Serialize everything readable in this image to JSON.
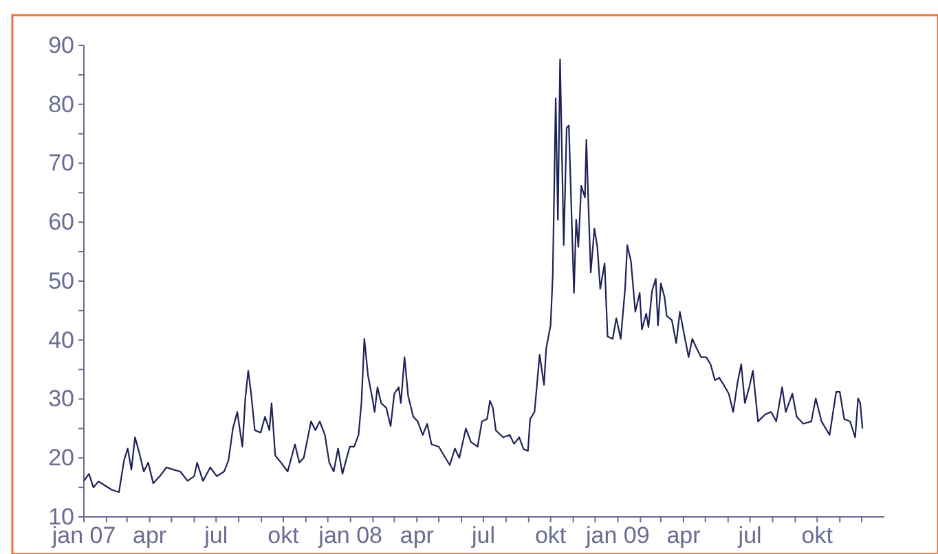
{
  "chart_data": {
    "type": "line",
    "xlim": [
      "2007-01-01",
      "2010-01-01"
    ],
    "xticks": [
      {
        "value": "2007-01-01",
        "label": "jan 07"
      },
      {
        "value": "2007-02-01",
        "label": null
      },
      {
        "value": "2007-03-01",
        "label": null
      },
      {
        "value": "2007-04-01",
        "label": "apr"
      },
      {
        "value": "2007-05-01",
        "label": null
      },
      {
        "value": "2007-06-01",
        "label": null
      },
      {
        "value": "2007-07-01",
        "label": "jul"
      },
      {
        "value": "2007-08-01",
        "label": null
      },
      {
        "value": "2007-09-01",
        "label": null
      },
      {
        "value": "2007-10-01",
        "label": "okt"
      },
      {
        "value": "2007-11-01",
        "label": null
      },
      {
        "value": "2007-12-01",
        "label": null
      },
      {
        "value": "2008-01-01",
        "label": "jan 08"
      },
      {
        "value": "2008-02-01",
        "label": null
      },
      {
        "value": "2008-03-01",
        "label": null
      },
      {
        "value": "2008-04-01",
        "label": "apr"
      },
      {
        "value": "2008-05-01",
        "label": null
      },
      {
        "value": "2008-06-01",
        "label": null
      },
      {
        "value": "2008-07-01",
        "label": "jul"
      },
      {
        "value": "2008-08-01",
        "label": null
      },
      {
        "value": "2008-09-01",
        "label": null
      },
      {
        "value": "2008-10-01",
        "label": "okt"
      },
      {
        "value": "2008-11-01",
        "label": null
      },
      {
        "value": "2008-12-01",
        "label": null
      },
      {
        "value": "2009-01-01",
        "label": "jan 09"
      },
      {
        "value": "2009-02-01",
        "label": null
      },
      {
        "value": "2009-03-01",
        "label": null
      },
      {
        "value": "2009-04-01",
        "label": "apr"
      },
      {
        "value": "2009-05-01",
        "label": null
      },
      {
        "value": "2009-06-01",
        "label": null
      },
      {
        "value": "2009-07-01",
        "label": "jul"
      },
      {
        "value": "2009-08-01",
        "label": null
      },
      {
        "value": "2009-09-01",
        "label": null
      },
      {
        "value": "2009-10-01",
        "label": "okt"
      },
      {
        "value": "2009-11-01",
        "label": null
      },
      {
        "value": "2009-12-01",
        "label": null
      }
    ],
    "ylim": [
      10,
      90
    ],
    "yticks": [
      10,
      {
        "value": 15,
        "label": null
      },
      20,
      {
        "value": 25,
        "label": null
      },
      30,
      {
        "value": 35,
        "label": null
      },
      40,
      {
        "value": 45,
        "label": null
      },
      50,
      {
        "value": 55,
        "label": null
      },
      60,
      {
        "value": 65,
        "label": null
      },
      70,
      {
        "value": 75,
        "label": null
      },
      80,
      {
        "value": 85,
        "label": null
      },
      90
    ],
    "grid": false,
    "marker": "none",
    "line_style": "solid",
    "series": [
      {
        "color": "#1f2257",
        "x": [
          "2007-01-01",
          "2007-01-08",
          "2007-01-14",
          "2007-01-21",
          "2007-01-30",
          "2007-02-08",
          "2007-02-18",
          "2007-02-25",
          "2007-03-02",
          "2007-03-07",
          "2007-03-12",
          "2007-03-18",
          "2007-03-24",
          "2007-03-30",
          "2007-04-06",
          "2007-04-15",
          "2007-04-24",
          "2007-05-04",
          "2007-05-13",
          "2007-05-23",
          "2007-06-01",
          "2007-06-05",
          "2007-06-13",
          "2007-06-23",
          "2007-07-02",
          "2007-07-12",
          "2007-07-18",
          "2007-07-24",
          "2007-07-30",
          "2007-08-06",
          "2007-08-10",
          "2007-08-14",
          "2007-08-18",
          "2007-08-23",
          "2007-08-31",
          "2007-09-06",
          "2007-09-12",
          "2007-09-15",
          "2007-09-20",
          "2007-09-28",
          "2007-10-07",
          "2007-10-17",
          "2007-10-23",
          "2007-10-29",
          "2007-11-08",
          "2007-11-14",
          "2007-11-20",
          "2007-11-27",
          "2007-12-03",
          "2007-12-09",
          "2007-12-15",
          "2007-12-21",
          "2007-12-31",
          "2008-01-06",
          "2008-01-12",
          "2008-01-16",
          "2008-01-20",
          "2008-01-25",
          "2008-01-31",
          "2008-02-03",
          "2008-02-07",
          "2008-02-12",
          "2008-02-19",
          "2008-02-25",
          "2008-03-01",
          "2008-03-07",
          "2008-03-10",
          "2008-03-15",
          "2008-03-20",
          "2008-03-27",
          "2008-04-02",
          "2008-04-09",
          "2008-04-15",
          "2008-04-21",
          "2008-05-01",
          "2008-05-10",
          "2008-05-16",
          "2008-05-23",
          "2008-05-29",
          "2008-06-07",
          "2008-06-14",
          "2008-06-23",
          "2008-06-29",
          "2008-07-06",
          "2008-07-10",
          "2008-07-14",
          "2008-07-18",
          "2008-07-28",
          "2008-08-06",
          "2008-08-12",
          "2008-08-19",
          "2008-08-25",
          "2008-08-31",
          "2008-09-03",
          "2008-09-09",
          "2008-09-16",
          "2008-09-22",
          "2008-09-25",
          "2008-10-01",
          "2008-10-04",
          "2008-10-08",
          "2008-10-11",
          "2008-10-14",
          "2008-10-19",
          "2008-10-23",
          "2008-10-26",
          "2008-11-02",
          "2008-11-05",
          "2008-11-08",
          "2008-11-12",
          "2008-11-17",
          "2008-11-19",
          "2008-11-22",
          "2008-11-25",
          "2008-11-30",
          "2008-12-04",
          "2008-12-08",
          "2008-12-14",
          "2008-12-18",
          "2008-12-25",
          "2008-12-30",
          "2009-01-05",
          "2009-01-11",
          "2009-01-14",
          "2009-01-19",
          "2009-01-25",
          "2009-01-31",
          "2009-02-03",
          "2009-02-09",
          "2009-02-12",
          "2009-02-17",
          "2009-02-22",
          "2009-02-25",
          "2009-03-01",
          "2009-03-06",
          "2009-03-09",
          "2009-03-16",
          "2009-03-22",
          "2009-03-27",
          "2009-04-02",
          "2009-04-08",
          "2009-04-13",
          "2009-04-19",
          "2009-04-25",
          "2009-05-02",
          "2009-05-08",
          "2009-05-14",
          "2009-05-20",
          "2009-05-26",
          "2009-06-02",
          "2009-06-08",
          "2009-06-14",
          "2009-06-19",
          "2009-06-24",
          "2009-06-30",
          "2009-07-05",
          "2009-07-12",
          "2009-07-22",
          "2009-07-30",
          "2009-08-06",
          "2009-08-14",
          "2009-08-19",
          "2009-08-28",
          "2009-09-03",
          "2009-09-12",
          "2009-09-23",
          "2009-09-29",
          "2009-10-07",
          "2009-10-18",
          "2009-10-27",
          "2009-11-01",
          "2009-11-07",
          "2009-11-15",
          "2009-11-22",
          "2009-11-26",
          "2009-11-29",
          "2009-12-02"
        ],
        "values": [
          16.1,
          17.3,
          15,
          16,
          15.3,
          14.6,
          14.2,
          19.6,
          21.6,
          18,
          23.5,
          20.8,
          17.7,
          19.2,
          15.7,
          16.9,
          18.4,
          18,
          17.7,
          16.1,
          16.9,
          19.2,
          16.1,
          18.4,
          16.9,
          17.7,
          19.6,
          25,
          27.8,
          21.9,
          30.1,
          34.8,
          30.9,
          24.7,
          24.3,
          27,
          24.7,
          29.3,
          20.4,
          19.2,
          17.7,
          22.3,
          19.2,
          20,
          26.2,
          24.7,
          26.2,
          23.9,
          19.2,
          17.7,
          21.6,
          17.3,
          21.9,
          21.9,
          23.9,
          29.3,
          40.2,
          34,
          30.1,
          27.8,
          32,
          29.3,
          28.5,
          25.4,
          30.9,
          32,
          29.3,
          37.1,
          30.5,
          27,
          26.2,
          23.9,
          25.8,
          22.3,
          21.9,
          20,
          18.8,
          21.6,
          20,
          25,
          22.7,
          21.9,
          26.2,
          26.6,
          29.7,
          28.5,
          24.7,
          23.5,
          23.9,
          22.4,
          23.5,
          21.5,
          21.2,
          26.6,
          27.8,
          37.5,
          32.4,
          38.6,
          42.5,
          51.1,
          81,
          60.4,
          87.6,
          56.1,
          76,
          76.4,
          48,
          60.4,
          55.8,
          66.2,
          64.2,
          74,
          62.2,
          51.5,
          58.9,
          55.8,
          48.7,
          53,
          40.6,
          40.2,
          43.7,
          40.2,
          48.7,
          56.1,
          53.4,
          44.8,
          48,
          41.8,
          44.5,
          42.2,
          48.4,
          50.4,
          42.5,
          49.6,
          47.3,
          44.1,
          43.4,
          39.5,
          44.8,
          40.9,
          37.1,
          40.2,
          38.6,
          37.1,
          37.1,
          35.9,
          33.2,
          33.6,
          32.4,
          30.9,
          27.8,
          32.8,
          35.9,
          29.3,
          32,
          34.8,
          26.2,
          27.4,
          27.8,
          26.2,
          32,
          27.8,
          30.9,
          27,
          25.8,
          26.2,
          30.1,
          26.2,
          23.9,
          31.2,
          31.2,
          26.6,
          26.2,
          23.5,
          30.1,
          29.3,
          25
        ]
      }
    ]
  }
}
